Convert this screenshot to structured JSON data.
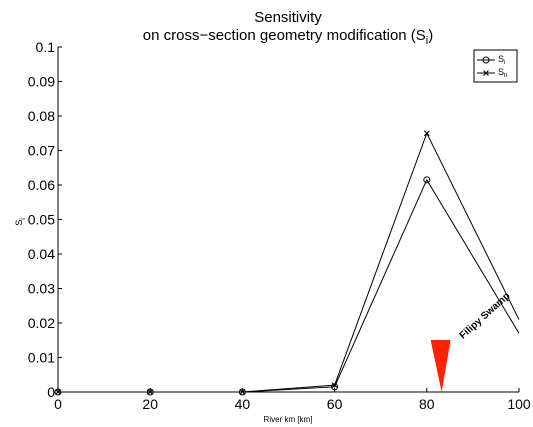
{
  "chart_data": {
    "type": "line",
    "title_line1": "Sensitivity",
    "title_line2_prefix": "on cross−section geometry modification (S",
    "title_line2_sub": "i",
    "title_line2_suffix": ")",
    "xlabel": "River km [km]",
    "ylabel_main": "S",
    "ylabel_sub": "i",
    "xlim": [
      0,
      100
    ],
    "ylim": [
      0,
      0.1
    ],
    "xticks": [
      0,
      20,
      40,
      60,
      80,
      100
    ],
    "xtick_labels": [
      "0",
      "20",
      "40",
      "60",
      "80",
      "100"
    ],
    "yticks": [
      0,
      0.01,
      0.02,
      0.03,
      0.04,
      0.05,
      0.06,
      0.07,
      0.08,
      0.09,
      0.1
    ],
    "ytick_labels": [
      "0",
      "0.01",
      "0.02",
      "0.03",
      "0.04",
      "0.05",
      "0.06",
      "0.07",
      "0.08",
      "0.09",
      "0.1"
    ],
    "grid": false,
    "legend_position": "top-right",
    "series": [
      {
        "name_main": "S",
        "name_sub": "i",
        "marker": "circle",
        "x": [
          0,
          20,
          40,
          60,
          80,
          100
        ],
        "y": [
          0,
          0,
          0,
          0.0015,
          0.0615,
          0.017
        ],
        "marker_x": [
          0,
          20,
          40,
          60,
          80
        ],
        "marker_y": [
          0,
          0,
          0,
          0.0015,
          0.0615
        ]
      },
      {
        "name_main": "S",
        "name_sub": "ti",
        "marker": "x",
        "x": [
          0,
          20,
          40,
          60,
          80,
          100
        ],
        "y": [
          0,
          0,
          0,
          0.002,
          0.075,
          0.021
        ],
        "marker_x": [
          0,
          20,
          40,
          60,
          80
        ],
        "marker_y": [
          0,
          0,
          0,
          0.002,
          0.075
        ]
      }
    ],
    "annotation": {
      "text": "Filipy Swamp",
      "x": 93,
      "y": 0.0215
    },
    "marker_triangle": {
      "x": 83,
      "color": "#ff2200"
    }
  }
}
